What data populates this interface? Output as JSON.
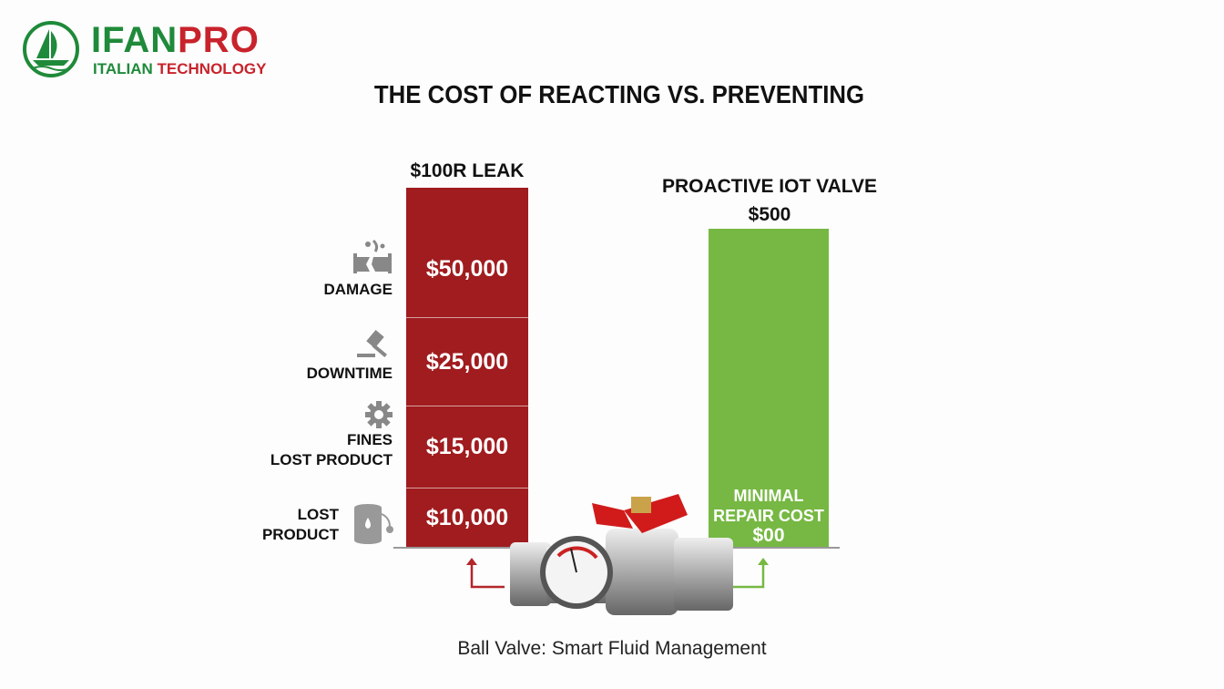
{
  "logo": {
    "brand_left": "IFAN",
    "brand_right": "PRO",
    "tagline_left": "ITALIAN",
    "tagline_right": "TECHNOLOGY",
    "registered": "®"
  },
  "colors": {
    "brand_green": "#1f8a3a",
    "brand_red": "#c8232c",
    "reactive_bar": "#a01c1f",
    "proactive_bar": "#76b843"
  },
  "chart_data": {
    "type": "bar",
    "title": "THE COST OF REACTING VS. PREVENTING",
    "bars": [
      {
        "header": "$100R LEAK",
        "stacked": true,
        "segments": [
          {
            "label": "DAMAGE",
            "value_label": "$50,000",
            "value": 50000,
            "icon": "broken-pipe-icon"
          },
          {
            "label": "DOWNTIME",
            "value_label": "$25,000",
            "value": 25000,
            "icon": "gavel-icon"
          },
          {
            "label_lines": [
              "FINES",
              "LOST PRODUCT"
            ],
            "value_label": "$15,000",
            "value": 15000,
            "icon": "gear-icon"
          },
          {
            "label_lines": [
              "LOST",
              "PRODUCT"
            ],
            "value_label": "$10,000",
            "value": 10000,
            "icon": "oil-barrel-icon"
          }
        ]
      },
      {
        "header_lines": [
          "PROACTIVE IOT VALVE",
          "$500"
        ],
        "value": 500,
        "note_lines": [
          "MINIMAL",
          "REPAIR COST",
          "$00"
        ]
      }
    ]
  },
  "caption": "Ball Valve: Smart Fluid Management"
}
